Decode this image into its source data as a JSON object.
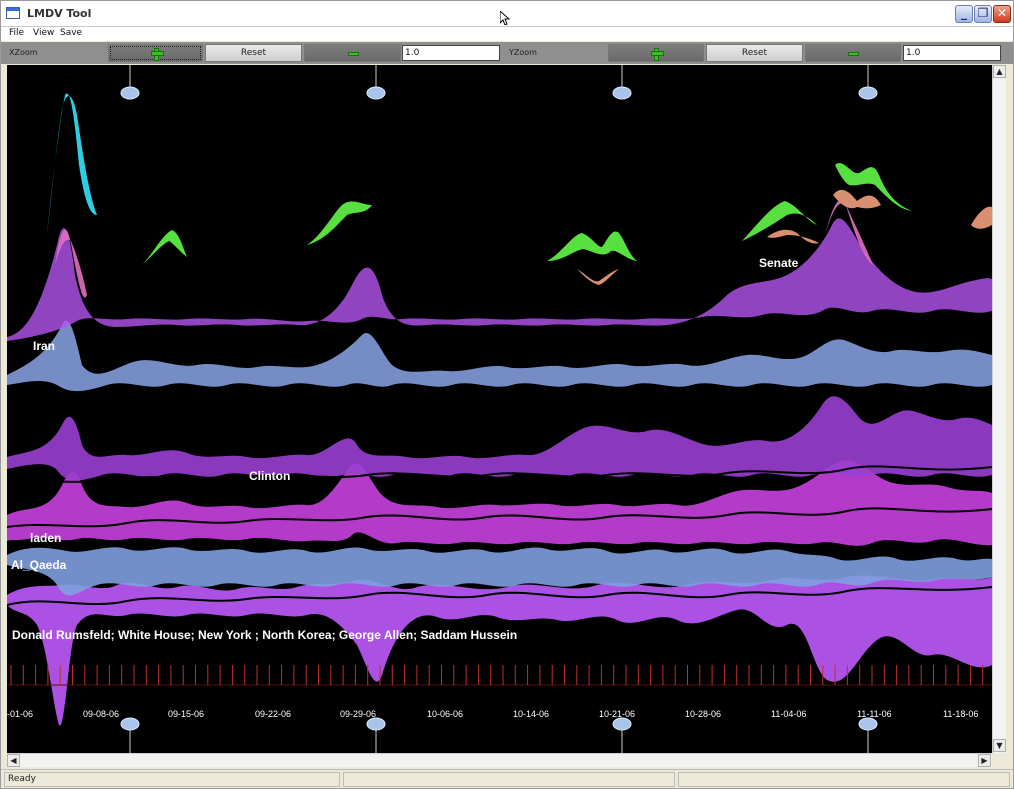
{
  "window": {
    "title": "LMDV Tool"
  },
  "menu": {
    "items": [
      "File",
      "View",
      "Save"
    ]
  },
  "toolbar": {
    "xzoom_label": "XZoom",
    "yzoom_label": "YZoom",
    "reset_label": "Reset",
    "xzoom_value": "1.0",
    "yzoom_value": "1.0"
  },
  "visualization": {
    "date_labels": [
      "-01-06",
      "09-08-06",
      "09-15-06",
      "09-22-06",
      "09-29-06",
      "10-06-06",
      "10-14-06",
      "10-21-06",
      "10-28-06",
      "11-04-06",
      "11-11-06",
      "11-18-06"
    ],
    "topic_labels": [
      "Iran",
      "Clinton",
      "laden",
      "Al_Qaeda",
      "Senate",
      "Donald Rumsfeld; White House; New York ; North Korea; George Allen; Saddam Hussein"
    ],
    "colors": {
      "background": "#000000",
      "purple": "#b455f0",
      "magenta": "#c840e0",
      "blue": "#7f9fe0",
      "green": "#58e040",
      "salmon": "#d99070",
      "cyan": "#30d8f0",
      "pink": "#e070c0",
      "tick": "#c0302a"
    }
  },
  "statusbar": {
    "text": "Ready"
  }
}
